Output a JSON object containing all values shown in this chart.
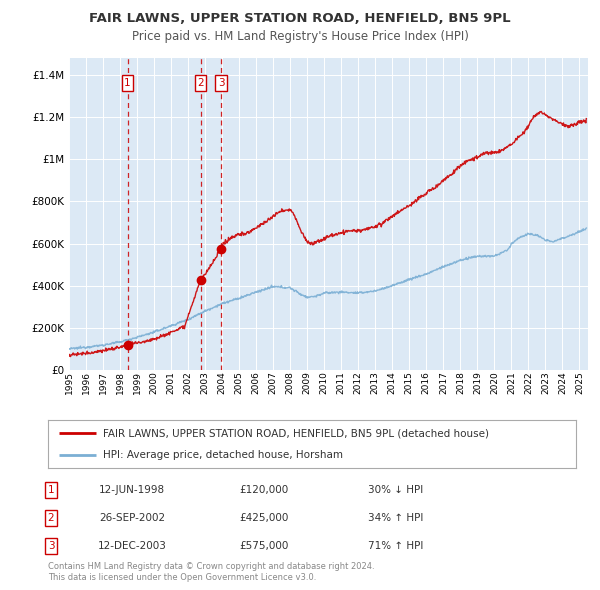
{
  "title": "FAIR LAWNS, UPPER STATION ROAD, HENFIELD, BN5 9PL",
  "subtitle": "Price paid vs. HM Land Registry's House Price Index (HPI)",
  "bg_color": "#dce9f5",
  "plot_bg_color": "#dce9f5",
  "red_line_color": "#cc0000",
  "blue_line_color": "#7bafd4",
  "vline_color": "#cc0000",
  "ylabel_values": [
    "£0",
    "£200K",
    "£400K",
    "£600K",
    "£800K",
    "£1M",
    "£1.2M",
    "£1.4M"
  ],
  "ytick_values": [
    0,
    200000,
    400000,
    600000,
    800000,
    1000000,
    1200000,
    1400000
  ],
  "ylim": [
    0,
    1480000
  ],
  "xmin": 1995.0,
  "xmax": 2025.5,
  "transactions": [
    {
      "label": "1",
      "date_val": 1998.44,
      "price": 120000,
      "date_str": "12-JUN-1998",
      "price_str": "£120,000",
      "hpi_str": "30% ↓ HPI"
    },
    {
      "label": "2",
      "date_val": 2002.73,
      "price": 425000,
      "date_str": "26-SEP-2002",
      "price_str": "£425,000",
      "hpi_str": "34% ↑ HPI"
    },
    {
      "label": "3",
      "date_val": 2003.94,
      "price": 575000,
      "date_str": "12-DEC-2003",
      "price_str": "£575,000",
      "hpi_str": "71% ↑ HPI"
    }
  ],
  "legend_label_red": "FAIR LAWNS, UPPER STATION ROAD, HENFIELD, BN5 9PL (detached house)",
  "legend_label_blue": "HPI: Average price, detached house, Horsham",
  "footer": "Contains HM Land Registry data © Crown copyright and database right 2024.\nThis data is licensed under the Open Government Licence v3.0."
}
